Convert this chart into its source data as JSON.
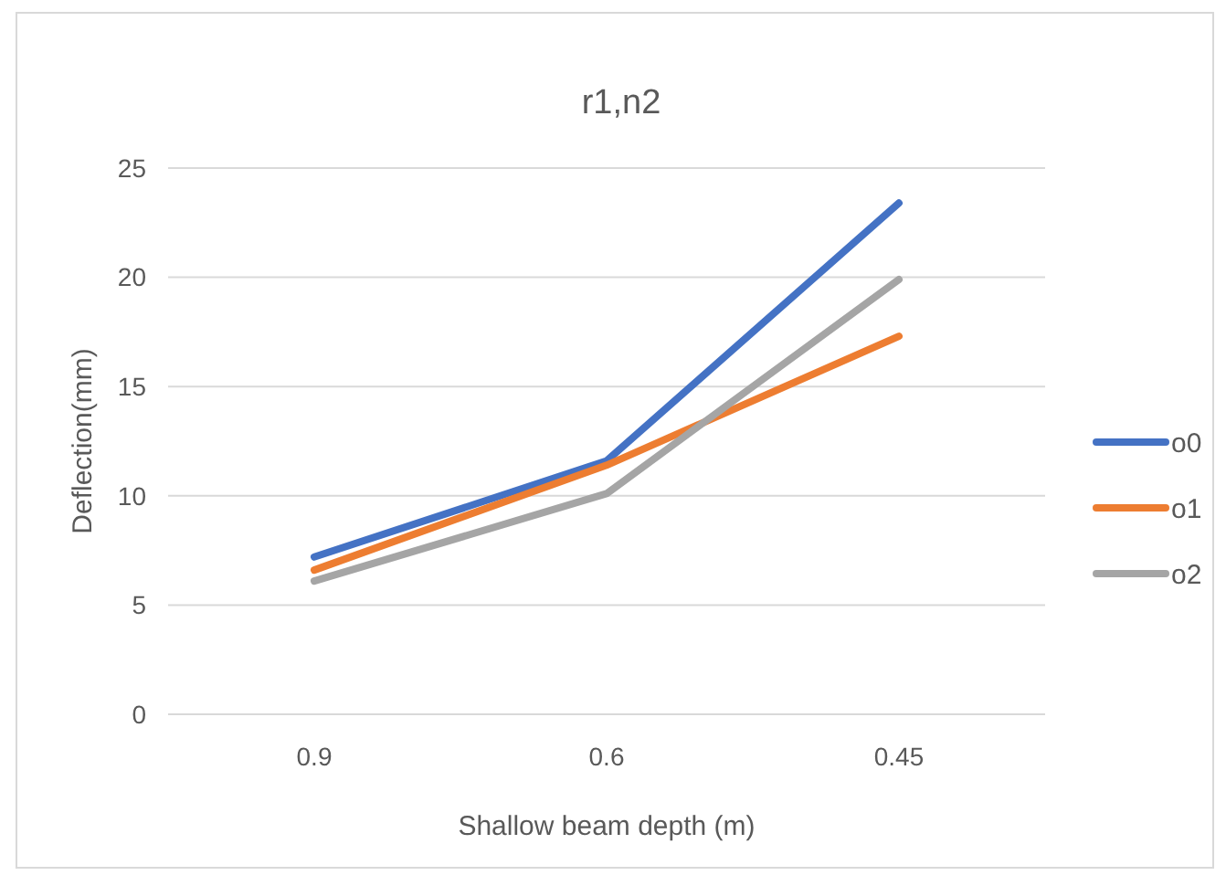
{
  "chart_data": {
    "type": "line",
    "title": "r1,n2",
    "xlabel": "Shallow beam depth (m)",
    "ylabel": "Deflection(mm)",
    "categories": [
      "0.9",
      "0.6",
      "0.45"
    ],
    "series": [
      {
        "name": "o0",
        "color": "#4472c4",
        "values": [
          7.2,
          11.6,
          23.4
        ]
      },
      {
        "name": "o1",
        "color": "#ed7d31",
        "values": [
          6.6,
          11.4,
          17.3
        ]
      },
      {
        "name": "o2",
        "color": "#a5a5a5",
        "values": [
          6.1,
          10.1,
          19.9
        ]
      }
    ],
    "ylim": [
      0,
      25
    ],
    "yticks": [
      0,
      5,
      10,
      15,
      20,
      25
    ],
    "grid": "y",
    "legend": "right",
    "line_style": "solid",
    "marker": "none"
  }
}
